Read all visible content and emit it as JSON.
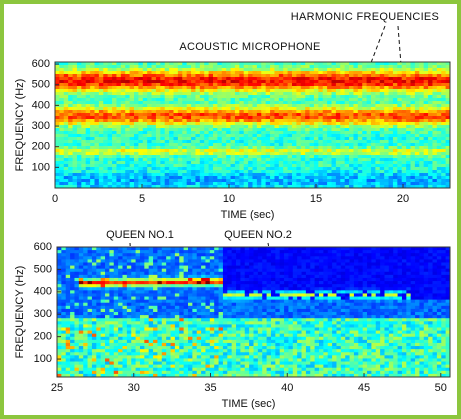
{
  "chart_data": [
    {
      "type": "spectrogram",
      "title": "ACOUSTIC MICROPHONE",
      "annotation": "HARMONIC FREQUENCIES",
      "xlabel": "TIME (sec)",
      "ylabel": "FREQUENCY (Hz)",
      "xlim": [
        0,
        22.7
      ],
      "ylim": [
        0,
        610
      ],
      "xticks": [
        0,
        5,
        10,
        15,
        20
      ],
      "yticks": [
        100,
        200,
        300,
        400,
        500,
        600
      ]
    },
    {
      "type": "spectrogram",
      "annotations": [
        "QUEEN NO.1",
        "QUEEN NO.2"
      ],
      "xlabel": "TIME (sec)",
      "ylabel": "FREQUENCY (Hz)",
      "xlim": [
        25,
        50.6
      ],
      "ylim": [
        20,
        600
      ],
      "xticks": [
        25,
        30,
        35,
        40,
        45,
        50
      ],
      "yticks": [
        100,
        200,
        300,
        400,
        500,
        600
      ]
    }
  ]
}
